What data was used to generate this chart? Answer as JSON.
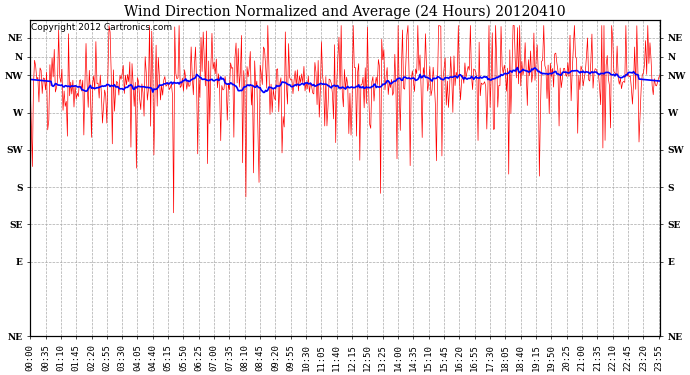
{
  "title": "Wind Direction Normalized and Average (24 Hours) 20120410",
  "copyright_text": "Copyright 2012 Cartronics.com",
  "background_color": "#ffffff",
  "plot_bg_color": "#ffffff",
  "grid_color": "#aaaaaa",
  "ytick_labels": [
    "NE",
    "N",
    "NW",
    "W",
    "SW",
    "S",
    "SE",
    "E",
    "NE"
  ],
  "ytick_values": [
    360,
    337.5,
    315,
    270,
    225,
    180,
    135,
    90,
    0
  ],
  "ylim": [
    0,
    382
  ],
  "num_points": 576,
  "red_line_color": "#ff0000",
  "blue_line_color": "#0000ff",
  "red_linewidth": 0.5,
  "blue_linewidth": 1.2,
  "title_fontsize": 10,
  "copyright_fontsize": 6.5,
  "tick_fontsize": 6.5,
  "figwidth": 6.9,
  "figheight": 3.75,
  "dpi": 100
}
